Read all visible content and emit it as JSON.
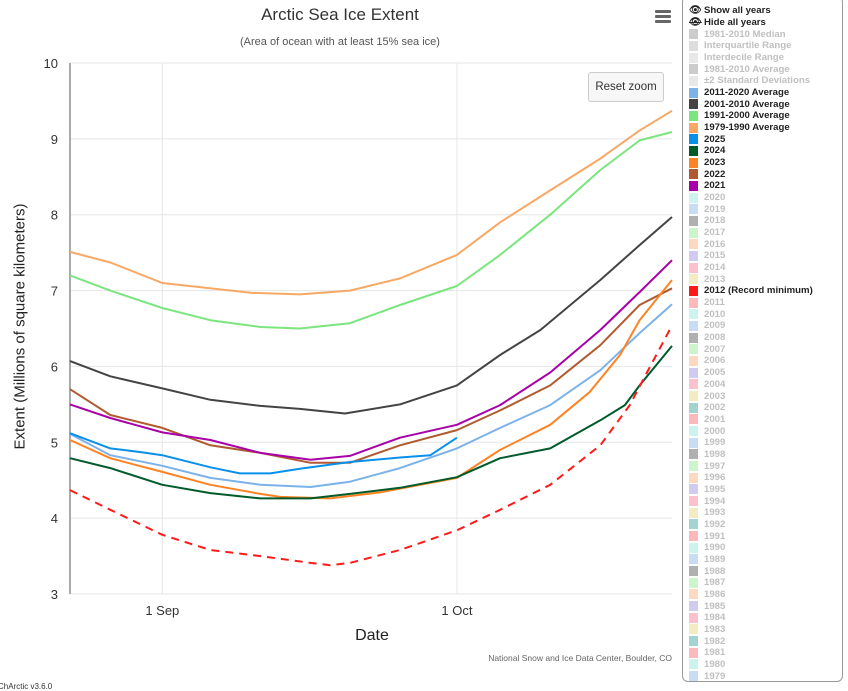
{
  "chart_data": {
    "type": "line",
    "title": "Arctic Sea Ice Extent",
    "subtitle": "(Area of ocean with at least 15% sea ice)",
    "xlabel": "Date",
    "ylabel": "Extent (Millions of square kilometers)",
    "x_units": "days since 1 Sep",
    "xlim": [
      -9.4,
      51.9
    ],
    "ylim": [
      3,
      10
    ],
    "yticks": [
      3,
      4,
      5,
      6,
      7,
      8,
      9,
      10
    ],
    "xticks": [
      {
        "day": 0,
        "label": "1 Sep"
      },
      {
        "day": 30,
        "label": "1 Oct"
      }
    ],
    "grid": true,
    "legend_position": "right",
    "series": [
      {
        "name": "1979-1990 Average",
        "color": "#f8a865",
        "dash": false,
        "points": [
          [
            -9.4,
            7.51
          ],
          [
            -5.3,
            7.37
          ],
          [
            0,
            7.1
          ],
          [
            9,
            6.97
          ],
          [
            14,
            6.95
          ],
          [
            19.1,
            7.0
          ],
          [
            24.2,
            7.16
          ],
          [
            30,
            7.47
          ],
          [
            34.4,
            7.9
          ],
          [
            39.5,
            8.32
          ],
          [
            44.6,
            8.74
          ],
          [
            48.6,
            9.11
          ],
          [
            51.9,
            9.37
          ]
        ]
      },
      {
        "name": "1991-2000 Average",
        "color": "#7be57f",
        "dash": false,
        "points": [
          [
            -9.4,
            7.2
          ],
          [
            -5.3,
            7.0
          ],
          [
            0,
            6.77
          ],
          [
            4.9,
            6.61
          ],
          [
            10,
            6.52
          ],
          [
            14,
            6.5
          ],
          [
            19.1,
            6.57
          ],
          [
            24.2,
            6.81
          ],
          [
            30,
            7.06
          ],
          [
            34.4,
            7.47
          ],
          [
            39.5,
            8.0
          ],
          [
            44.6,
            8.59
          ],
          [
            48.6,
            8.98
          ],
          [
            51.9,
            9.09
          ]
        ]
      },
      {
        "name": "2001-2010 Average",
        "color": "#444444",
        "dash": false,
        "points": [
          [
            -9.4,
            6.07
          ],
          [
            -5.3,
            5.87
          ],
          [
            0,
            5.71
          ],
          [
            4.9,
            5.56
          ],
          [
            10,
            5.48
          ],
          [
            14,
            5.44
          ],
          [
            18.6,
            5.38
          ],
          [
            24.2,
            5.5
          ],
          [
            30,
            5.75
          ],
          [
            34.4,
            6.15
          ],
          [
            38.5,
            6.48
          ],
          [
            44.6,
            7.14
          ],
          [
            48.6,
            7.6
          ],
          [
            51.9,
            7.97
          ]
        ]
      },
      {
        "name": "2011-2020 Average",
        "color": "#7cb2ea",
        "dash": false,
        "points": [
          [
            -9.4,
            5.11
          ],
          [
            -5.3,
            4.83
          ],
          [
            0,
            4.69
          ],
          [
            4.9,
            4.53
          ],
          [
            10,
            4.44
          ],
          [
            15.1,
            4.41
          ],
          [
            19.1,
            4.48
          ],
          [
            24.2,
            4.66
          ],
          [
            30,
            4.92
          ],
          [
            34.4,
            5.19
          ],
          [
            39.5,
            5.49
          ],
          [
            44.6,
            5.95
          ],
          [
            48.6,
            6.44
          ],
          [
            51.9,
            6.82
          ]
        ]
      },
      {
        "name": "2022",
        "color": "#b05a30",
        "dash": false,
        "points": [
          [
            -9.4,
            5.7
          ],
          [
            -5.3,
            5.36
          ],
          [
            0,
            5.19
          ],
          [
            4.9,
            4.96
          ],
          [
            10,
            4.86
          ],
          [
            15.1,
            4.73
          ],
          [
            19.1,
            4.73
          ],
          [
            24.2,
            4.96
          ],
          [
            30,
            5.16
          ],
          [
            34.4,
            5.42
          ],
          [
            39.5,
            5.75
          ],
          [
            44.6,
            6.28
          ],
          [
            48.6,
            6.81
          ],
          [
            51.9,
            7.03
          ]
        ]
      },
      {
        "name": "2021",
        "color": "#a800a8",
        "dash": false,
        "points": [
          [
            -9.4,
            5.5
          ],
          [
            -5.3,
            5.32
          ],
          [
            0,
            5.13
          ],
          [
            4.9,
            5.03
          ],
          [
            10,
            4.86
          ],
          [
            15.1,
            4.77
          ],
          [
            19.1,
            4.82
          ],
          [
            24.2,
            5.06
          ],
          [
            30,
            5.23
          ],
          [
            34.4,
            5.49
          ],
          [
            39.5,
            5.92
          ],
          [
            44.6,
            6.48
          ],
          [
            48.6,
            6.98
          ],
          [
            51.9,
            7.4
          ]
        ]
      },
      {
        "name": "2023",
        "color": "#fd8324",
        "dash": false,
        "points": [
          [
            -9.4,
            5.03
          ],
          [
            -5.3,
            4.79
          ],
          [
            0,
            4.61
          ],
          [
            4.9,
            4.44
          ],
          [
            10,
            4.32
          ],
          [
            12,
            4.28
          ],
          [
            17.1,
            4.26
          ],
          [
            22.2,
            4.34
          ],
          [
            30,
            4.53
          ],
          [
            34.4,
            4.9
          ],
          [
            39.5,
            5.23
          ],
          [
            43.5,
            5.66
          ],
          [
            46.6,
            6.15
          ],
          [
            48.6,
            6.61
          ],
          [
            51.9,
            7.14
          ]
        ]
      },
      {
        "name": "2024",
        "color": "#005a2a",
        "dash": false,
        "points": [
          [
            -9.4,
            4.79
          ],
          [
            -5.3,
            4.66
          ],
          [
            0,
            4.44
          ],
          [
            4.9,
            4.33
          ],
          [
            10,
            4.26
          ],
          [
            15.1,
            4.26
          ],
          [
            19.1,
            4.32
          ],
          [
            24.2,
            4.4
          ],
          [
            30,
            4.54
          ],
          [
            34.4,
            4.79
          ],
          [
            39.5,
            4.92
          ],
          [
            44.6,
            5.29
          ],
          [
            47.1,
            5.49
          ],
          [
            48.6,
            5.75
          ],
          [
            51.9,
            6.27
          ]
        ]
      },
      {
        "name": "2025",
        "color": "#0890ea",
        "dash": false,
        "points": [
          [
            -9.4,
            5.12
          ],
          [
            -5.3,
            4.92
          ],
          [
            -2.2,
            4.87
          ],
          [
            0,
            4.83
          ],
          [
            4.9,
            4.67
          ],
          [
            7.9,
            4.59
          ],
          [
            11,
            4.59
          ],
          [
            14,
            4.65
          ],
          [
            19.1,
            4.74
          ],
          [
            24.2,
            4.8
          ],
          [
            27.3,
            4.83
          ],
          [
            30,
            5.06
          ]
        ]
      },
      {
        "name": "2012 (Record minimum)",
        "color": "#ff1a1a",
        "dash": true,
        "points": [
          [
            -9.4,
            4.37
          ],
          [
            -5.3,
            4.11
          ],
          [
            0,
            3.78
          ],
          [
            4.9,
            3.58
          ],
          [
            10,
            3.5
          ],
          [
            15.1,
            3.41
          ],
          [
            17.1,
            3.38
          ],
          [
            19.1,
            3.41
          ],
          [
            24.2,
            3.58
          ],
          [
            30,
            3.84
          ],
          [
            34.4,
            4.11
          ],
          [
            39.5,
            4.44
          ],
          [
            44.6,
            4.96
          ],
          [
            47.6,
            5.49
          ],
          [
            49.6,
            5.98
          ],
          [
            51.9,
            6.54
          ]
        ]
      }
    ]
  },
  "ui": {
    "reset_zoom": "Reset zoom",
    "credits": "National Snow and Ice Data Center, Boulder, CO",
    "version": "ChArctic v3.6.0",
    "show_all": "Show all years",
    "hide_all": "Hide all years"
  },
  "legend": [
    {
      "label": "1981-2010 Median",
      "color": "#cccccc",
      "on": false
    },
    {
      "label": "Interquartile Range",
      "color": "#dddddd",
      "on": false
    },
    {
      "label": "Interdecile Range",
      "color": "#e8e8e8",
      "on": false
    },
    {
      "label": "1981-2010 Average",
      "color": "#cccccc",
      "on": false
    },
    {
      "label": "±2 Standard Deviations",
      "color": "#e8e8e8",
      "on": false
    },
    {
      "label": "2011-2020 Average",
      "color": "#7cb2ea",
      "on": true
    },
    {
      "label": "2001-2010 Average",
      "color": "#444444",
      "on": true
    },
    {
      "label": "1991-2000 Average",
      "color": "#7be57f",
      "on": true
    },
    {
      "label": "1979-1990 Average",
      "color": "#f8a865",
      "on": true
    },
    {
      "label": "2025",
      "color": "#0890ea",
      "on": true
    },
    {
      "label": "2024",
      "color": "#005a2a",
      "on": true
    },
    {
      "label": "2023",
      "color": "#fd8324",
      "on": true
    },
    {
      "label": "2022",
      "color": "#b05a30",
      "on": true
    },
    {
      "label": "2021",
      "color": "#a800a8",
      "on": true
    },
    {
      "label": "2020",
      "color": "#ccf3ef",
      "on": false
    },
    {
      "label": "2019",
      "color": "#c8ddf3",
      "on": false
    },
    {
      "label": "2018",
      "color": "#b0b0b0",
      "on": false
    },
    {
      "label": "2017",
      "color": "#ccf5cc",
      "on": false
    },
    {
      "label": "2016",
      "color": "#fcdac2",
      "on": false
    },
    {
      "label": "2015",
      "color": "#d2cbf0",
      "on": false
    },
    {
      "label": "2014",
      "color": "#fbc1cc",
      "on": false
    },
    {
      "label": "2013",
      "color": "#f3ecc3",
      "on": false
    },
    {
      "label": "2012 (Record minimum)",
      "color": "#ff1a1a",
      "on": true
    },
    {
      "label": "2011",
      "color": "#fcb9b9",
      "on": false
    },
    {
      "label": "2010",
      "color": "#ccf3ef",
      "on": false
    },
    {
      "label": "2009",
      "color": "#c8ddf3",
      "on": false
    },
    {
      "label": "2008",
      "color": "#b0b0b0",
      "on": false
    },
    {
      "label": "2007",
      "color": "#ccf5cc",
      "on": false
    },
    {
      "label": "2006",
      "color": "#fcdac2",
      "on": false
    },
    {
      "label": "2005",
      "color": "#d2cbf0",
      "on": false
    },
    {
      "label": "2004",
      "color": "#fbc1cc",
      "on": false
    },
    {
      "label": "2003",
      "color": "#f3ecc3",
      "on": false
    },
    {
      "label": "2002",
      "color": "#a3d3d0",
      "on": false
    },
    {
      "label": "2001",
      "color": "#fcb9b9",
      "on": false
    },
    {
      "label": "2000",
      "color": "#ccf3ef",
      "on": false
    },
    {
      "label": "1999",
      "color": "#c8ddf3",
      "on": false
    },
    {
      "label": "1998",
      "color": "#b0b0b0",
      "on": false
    },
    {
      "label": "1997",
      "color": "#ccf5cc",
      "on": false
    },
    {
      "label": "1996",
      "color": "#fcdac2",
      "on": false
    },
    {
      "label": "1995",
      "color": "#d2cbf0",
      "on": false
    },
    {
      "label": "1994",
      "color": "#fbc1cc",
      "on": false
    },
    {
      "label": "1993",
      "color": "#f3ecc3",
      "on": false
    },
    {
      "label": "1992",
      "color": "#a3d3d0",
      "on": false
    },
    {
      "label": "1991",
      "color": "#fcb9b9",
      "on": false
    },
    {
      "label": "1990",
      "color": "#ccf3ef",
      "on": false
    },
    {
      "label": "1989",
      "color": "#c8ddf3",
      "on": false
    },
    {
      "label": "1988",
      "color": "#b0b0b0",
      "on": false
    },
    {
      "label": "1987",
      "color": "#ccf5cc",
      "on": false
    },
    {
      "label": "1986",
      "color": "#fcdac2",
      "on": false
    },
    {
      "label": "1985",
      "color": "#d2cbf0",
      "on": false
    },
    {
      "label": "1984",
      "color": "#fbc1cc",
      "on": false
    },
    {
      "label": "1983",
      "color": "#f3ecc3",
      "on": false
    },
    {
      "label": "1982",
      "color": "#a3d3d0",
      "on": false
    },
    {
      "label": "1981",
      "color": "#fcb9b9",
      "on": false
    },
    {
      "label": "1980",
      "color": "#ccf3ef",
      "on": false
    },
    {
      "label": "1979",
      "color": "#c8ddf3",
      "on": false
    }
  ]
}
